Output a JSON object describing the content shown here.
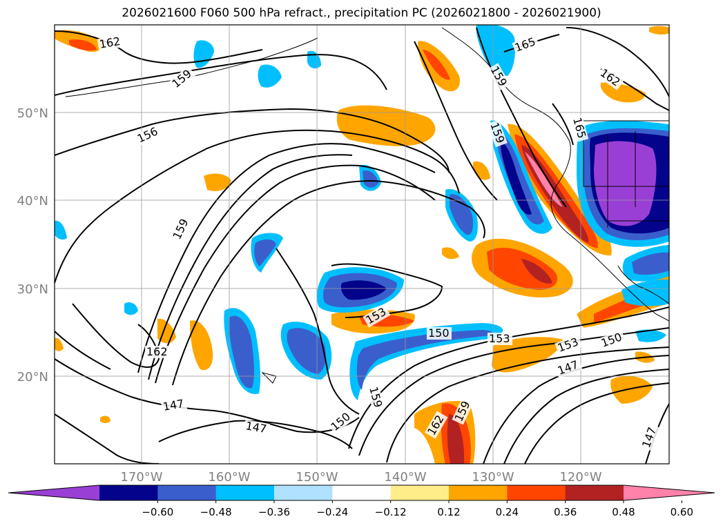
{
  "title": "2026021600 F060 500 hPa refract., precipitation PC (2026021800 - 2026021900)",
  "lon_ticks": [
    "170°W",
    "160°W",
    "150°W",
    "140°W",
    "130°W",
    "120°W"
  ],
  "lat_ticks": [
    "50°N",
    "40°N",
    "30°N",
    "20°N"
  ],
  "colorbar": {
    "colors": [
      "#9a3fd6",
      "#03038c",
      "#3a5fcd",
      "#00bfff",
      "#b0e2ff",
      "#ffffff",
      "#ffed8a",
      "#ffa500",
      "#ff4500",
      "#b22222",
      "#ff82ab"
    ],
    "tick_labels": [
      "−0.60",
      "−0.48",
      "−0.36",
      "−0.24",
      "−0.12",
      "0.12",
      "0.24",
      "0.36",
      "0.48",
      "0.60"
    ]
  },
  "contour_labels": [
    "162",
    "165",
    "162",
    "159",
    "156",
    "159",
    "159",
    "165",
    "159",
    "162",
    "153",
    "150",
    "153",
    "153",
    "150",
    "147",
    "147",
    "147",
    "150",
    "159",
    "162",
    "159",
    "147"
  ]
}
